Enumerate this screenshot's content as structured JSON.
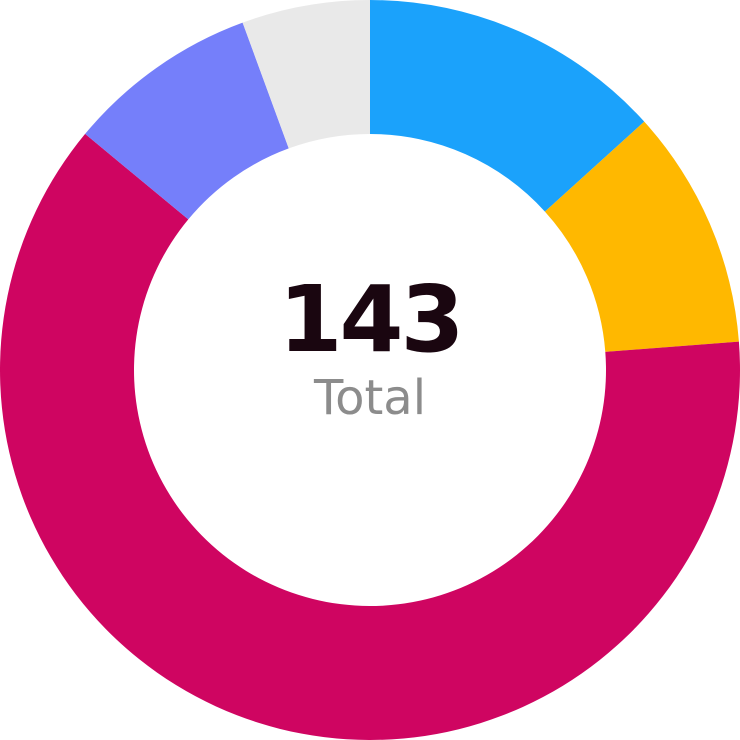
{
  "chart_data": {
    "type": "pie",
    "categories": [
      "",
      "",
      "",
      "",
      ""
    ],
    "values": [
      19,
      15,
      89,
      12,
      8
    ],
    "colors": [
      "#1ba2fb",
      "#ffb800",
      "#cf0561",
      "#757ffa",
      "#e9e9e9"
    ],
    "title": "",
    "center_value": "143",
    "center_label": "Total"
  }
}
